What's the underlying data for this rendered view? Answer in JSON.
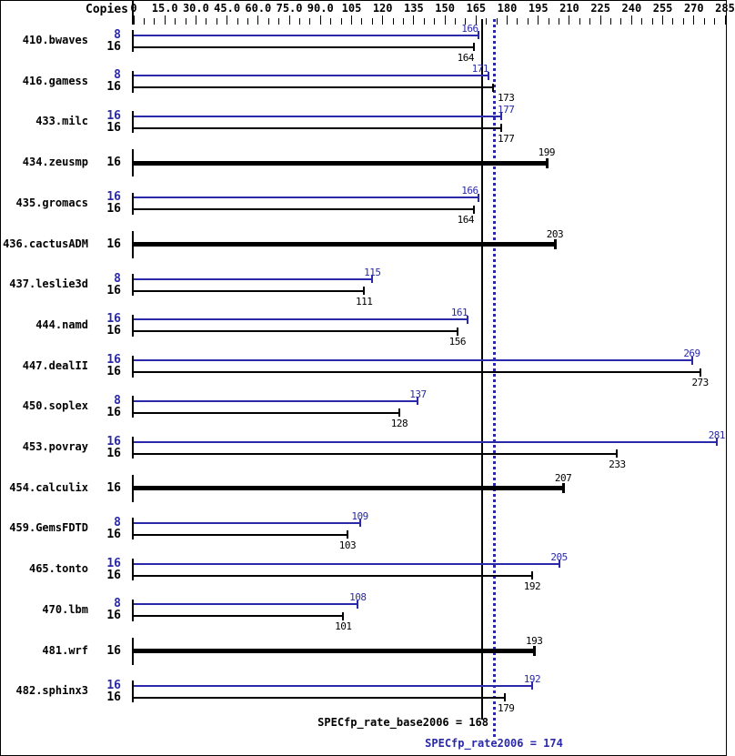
{
  "header": {
    "copies_label": "Copies"
  },
  "colors": {
    "peak": "#2929aa",
    "base": "#000000",
    "background": "#ffffff",
    "border": "#000000"
  },
  "chart_data": {
    "type": "bar",
    "orientation": "horizontal",
    "xlabel": "",
    "ylabel": "Copies",
    "xlim": [
      0,
      285
    ],
    "grid": false,
    "x_ticks": [
      {
        "value": 0,
        "label": "0"
      },
      {
        "value": 15,
        "label": "15.0"
      },
      {
        "value": 30,
        "label": "30.0"
      },
      {
        "value": 45,
        "label": "45.0"
      },
      {
        "value": 60,
        "label": "60.0"
      },
      {
        "value": 75,
        "label": "75.0"
      },
      {
        "value": 90,
        "label": "90.0"
      },
      {
        "value": 105,
        "label": "105"
      },
      {
        "value": 120,
        "label": "120"
      },
      {
        "value": 135,
        "label": "135"
      },
      {
        "value": 150,
        "label": "150"
      },
      {
        "value": 165,
        "label": "165"
      },
      {
        "value": 180,
        "label": "180"
      },
      {
        "value": 195,
        "label": "195"
      },
      {
        "value": 210,
        "label": "210"
      },
      {
        "value": 225,
        "label": "225"
      },
      {
        "value": 240,
        "label": "240"
      },
      {
        "value": 255,
        "label": "255"
      },
      {
        "value": 270,
        "label": "270"
      },
      {
        "value": 285,
        "label": "285"
      }
    ],
    "benchmarks": [
      {
        "name": "410.bwaves",
        "bars": [
          {
            "series": "peak",
            "copies": "8",
            "value": 166
          },
          {
            "series": "base",
            "copies": "16",
            "value": 164
          }
        ]
      },
      {
        "name": "416.gamess",
        "bars": [
          {
            "series": "peak",
            "copies": "8",
            "value": 171
          },
          {
            "series": "base",
            "copies": "16",
            "value": 173
          }
        ]
      },
      {
        "name": "433.milc",
        "bars": [
          {
            "series": "peak",
            "copies": "16",
            "value": 177
          },
          {
            "series": "base",
            "copies": "16",
            "value": 177
          }
        ]
      },
      {
        "name": "434.zeusmp",
        "bars": [
          {
            "series": "base",
            "copies": "16",
            "value": 199
          }
        ]
      },
      {
        "name": "435.gromacs",
        "bars": [
          {
            "series": "peak",
            "copies": "16",
            "value": 166
          },
          {
            "series": "base",
            "copies": "16",
            "value": 164
          }
        ]
      },
      {
        "name": "436.cactusADM",
        "bars": [
          {
            "series": "base",
            "copies": "16",
            "value": 203
          }
        ]
      },
      {
        "name": "437.leslie3d",
        "bars": [
          {
            "series": "peak",
            "copies": "8",
            "value": 115
          },
          {
            "series": "base",
            "copies": "16",
            "value": 111
          }
        ]
      },
      {
        "name": "444.namd",
        "bars": [
          {
            "series": "peak",
            "copies": "16",
            "value": 161
          },
          {
            "series": "base",
            "copies": "16",
            "value": 156
          }
        ]
      },
      {
        "name": "447.dealII",
        "bars": [
          {
            "series": "peak",
            "copies": "16",
            "value": 269
          },
          {
            "series": "base",
            "copies": "16",
            "value": 273
          }
        ]
      },
      {
        "name": "450.soplex",
        "bars": [
          {
            "series": "peak",
            "copies": "8",
            "value": 137
          },
          {
            "series": "base",
            "copies": "16",
            "value": 128
          }
        ]
      },
      {
        "name": "453.povray",
        "bars": [
          {
            "series": "peak",
            "copies": "16",
            "value": 281
          },
          {
            "series": "base",
            "copies": "16",
            "value": 233
          }
        ]
      },
      {
        "name": "454.calculix",
        "bars": [
          {
            "series": "base",
            "copies": "16",
            "value": 207
          }
        ]
      },
      {
        "name": "459.GemsFDTD",
        "bars": [
          {
            "series": "peak",
            "copies": "8",
            "value": 109
          },
          {
            "series": "base",
            "copies": "16",
            "value": 103
          }
        ]
      },
      {
        "name": "465.tonto",
        "bars": [
          {
            "series": "peak",
            "copies": "16",
            "value": 205
          },
          {
            "series": "base",
            "copies": "16",
            "value": 192
          }
        ]
      },
      {
        "name": "470.lbm",
        "bars": [
          {
            "series": "peak",
            "copies": "8",
            "value": 108
          },
          {
            "series": "base",
            "copies": "16",
            "value": 101
          }
        ]
      },
      {
        "name": "481.wrf",
        "bars": [
          {
            "series": "base",
            "copies": "16",
            "value": 193
          }
        ]
      },
      {
        "name": "482.sphinx3",
        "bars": [
          {
            "series": "peak",
            "copies": "16",
            "value": 192
          },
          {
            "series": "base",
            "copies": "16",
            "value": 179
          }
        ]
      }
    ],
    "reference_lines": [
      {
        "name": "base",
        "value": 168,
        "label": "SPECfp_rate_base2006 = 168",
        "color": "#000000",
        "style": "solid"
      },
      {
        "name": "peak",
        "value": 174,
        "label": "SPECfp_rate2006 = 174",
        "color": "#2929aa",
        "style": "dotted"
      }
    ]
  }
}
